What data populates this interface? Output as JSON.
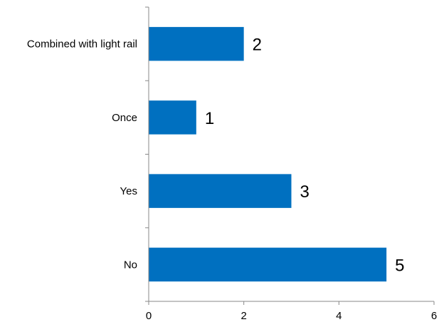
{
  "chart_data": {
    "type": "bar",
    "orientation": "horizontal",
    "categories": [
      "Combined with light rail",
      "Once",
      "Yes",
      "No"
    ],
    "values": [
      2,
      1,
      3,
      5
    ],
    "data_labels": [
      "2",
      "1",
      "3",
      "5"
    ],
    "x_ticks": [
      "0",
      "2",
      "4",
      "6"
    ],
    "xlim": [
      0,
      6
    ],
    "bar_color": "#0070c0",
    "axis_color": "#888888",
    "grid": false,
    "legend": "none"
  }
}
